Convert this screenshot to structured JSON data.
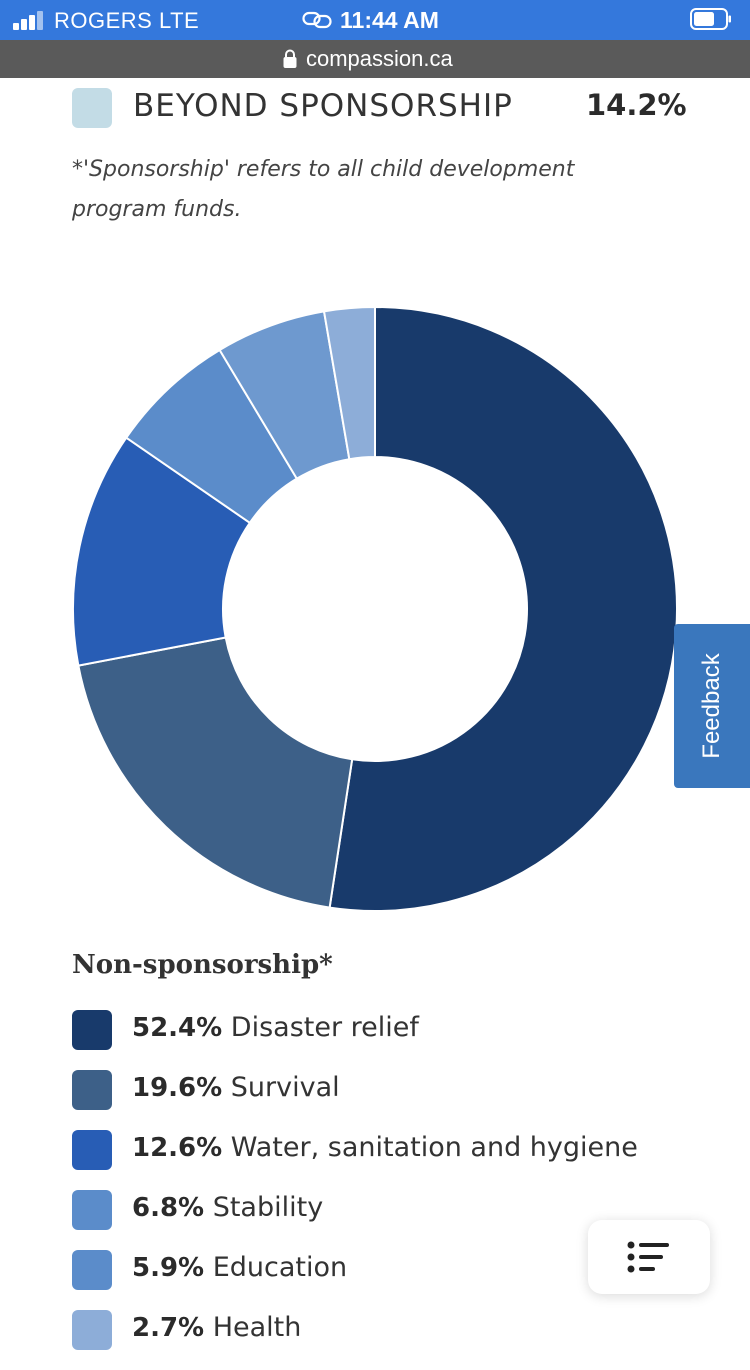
{
  "status_bar": {
    "carrier": "ROGERS  LTE",
    "time": "11:44 AM",
    "signal_icon": "signal-bars-icon",
    "battery_icon": "battery-icon",
    "link_icon": "personal-hotspot-icon"
  },
  "url_bar": {
    "url": "compassion.ca",
    "lock_icon": "lock-icon"
  },
  "sponsorship_row": {
    "label": "BEYOND SPONSORSHIP",
    "percent": "14.2%",
    "color": "#c3dce6"
  },
  "footnote": "*'Sponsorship' refers to all child development program funds.",
  "chart_data": {
    "type": "pie",
    "title": "Non-sponsorship*",
    "donut": true,
    "categories": [
      "Disaster relief",
      "Survival",
      "Water, sanitation and hygiene",
      "Stability",
      "Education",
      "Health"
    ],
    "values": [
      52.4,
      19.6,
      12.6,
      6.8,
      5.9,
      2.7
    ],
    "colors": [
      "#183a6b",
      "#3d6088",
      "#285db5",
      "#5b8cca",
      "#6e99cf",
      "#8dadd8"
    ]
  },
  "legend": {
    "title": "Non-sponsorship*",
    "items": [
      {
        "percent": "52.4%",
        "label": "Disaster relief",
        "color": "#183a6b"
      },
      {
        "percent": "19.6%",
        "label": "Survival",
        "color": "#3d6088"
      },
      {
        "percent": "12.6%",
        "label": "Water, sanitation and hygiene",
        "color": "#285db5"
      },
      {
        "percent": "6.8%",
        "label": "Stability",
        "color": "#5b8cca"
      },
      {
        "percent": "5.9%",
        "label": "Education",
        "color": "#5b8cca"
      },
      {
        "percent": "2.7%",
        "label": "Health",
        "color": "#8dadd8"
      }
    ]
  },
  "feedback": {
    "label": "Feedback"
  },
  "menu_button": {
    "icon": "list-menu-icon"
  }
}
